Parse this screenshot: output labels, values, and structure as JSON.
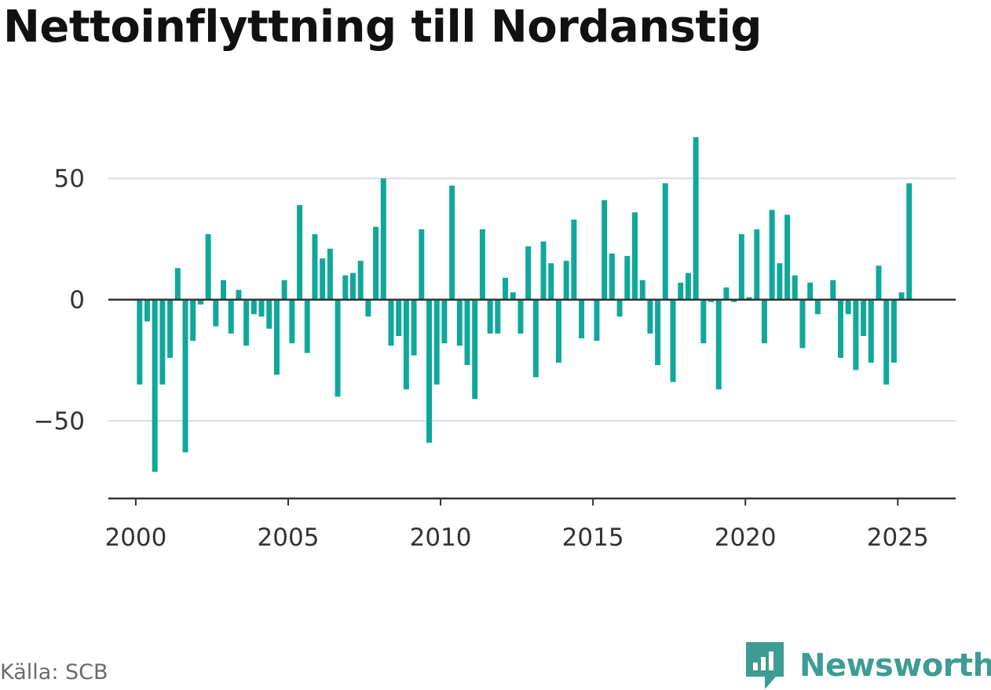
{
  "title": "Nettoinflyttning till Nordanstig",
  "source": "Källa: SCB",
  "brand": "Newsworthy",
  "colors": {
    "bar": "#0fa89b",
    "brand": "#3d9c93",
    "grid": "#dcdcdc",
    "axis": "#333333",
    "text": "#333333"
  },
  "chart_data": {
    "type": "bar",
    "xlabel": "",
    "ylabel": "",
    "ylim": [
      -82,
      75
    ],
    "y_ticks": [
      50,
      0,
      -50
    ],
    "x_ticks": [
      2000,
      2005,
      2010,
      2015,
      2020,
      2025
    ],
    "xlim": [
      1999.1,
      2026.9
    ],
    "grid": true,
    "legend": "none",
    "series": [
      {
        "x": [
          2000.0,
          2000.25,
          2000.5,
          2000.75,
          2001.0,
          2001.25,
          2001.5,
          2001.75,
          2002.0,
          2002.25,
          2002.5,
          2002.75,
          2003.0,
          2003.25,
          2003.5,
          2003.75,
          2004.0,
          2004.25,
          2004.5,
          2004.75,
          2005.0,
          2005.25,
          2005.5,
          2005.75,
          2006.0,
          2006.25,
          2006.5,
          2006.75,
          2007.0,
          2007.25,
          2007.5,
          2007.75,
          2008.0,
          2008.25,
          2008.5,
          2008.75,
          2009.0,
          2009.25,
          2009.5,
          2009.75,
          2010.0,
          2010.25,
          2010.5,
          2010.75,
          2011.0,
          2011.25,
          2011.5,
          2011.75,
          2012.0,
          2012.25,
          2012.5,
          2012.75,
          2013.0,
          2013.25,
          2013.5,
          2013.75,
          2014.0,
          2014.25,
          2014.5,
          2014.75,
          2015.0,
          2015.25,
          2015.5,
          2015.75,
          2016.0,
          2016.25,
          2016.5,
          2016.75,
          2017.0,
          2017.25,
          2017.5,
          2017.75,
          2018.0,
          2018.25,
          2018.5,
          2018.75,
          2019.0,
          2019.25,
          2019.5,
          2019.75,
          2020.0,
          2020.25,
          2020.5,
          2020.75,
          2021.0,
          2021.25,
          2021.5,
          2021.75,
          2022.0,
          2022.25,
          2022.5,
          2022.75,
          2023.0,
          2023.25,
          2023.5,
          2023.75,
          2024.0,
          2024.25,
          2024.5,
          2024.75,
          2025.0,
          2025.25
        ],
        "values": [
          -35,
          -9,
          -71,
          -35,
          -24,
          13,
          -63,
          -17,
          -2,
          27,
          -11,
          8,
          -14,
          4,
          -19,
          -6,
          -7,
          -12,
          -31,
          8,
          -18,
          39,
          -22,
          27,
          17,
          21,
          -40,
          10,
          11,
          16,
          -7,
          30,
          50,
          -19,
          -15,
          -37,
          -23,
          29,
          -59,
          -35,
          -18,
          47,
          -19,
          -27,
          -41,
          29,
          -14,
          -14,
          9,
          3,
          -14,
          22,
          -32,
          24,
          15,
          -26,
          16,
          33,
          -16,
          0,
          -17,
          41,
          19,
          -7,
          18,
          36,
          8,
          -14,
          -27,
          48,
          -34,
          7,
          11,
          67,
          -18,
          -1,
          -37,
          5,
          -1,
          27,
          1,
          29,
          -18,
          37,
          15,
          35,
          10,
          -20,
          7,
          -6,
          0,
          8,
          -24,
          -6,
          -29,
          -15,
          -26,
          14,
          -35,
          -26,
          3,
          48
        ]
      }
    ]
  }
}
